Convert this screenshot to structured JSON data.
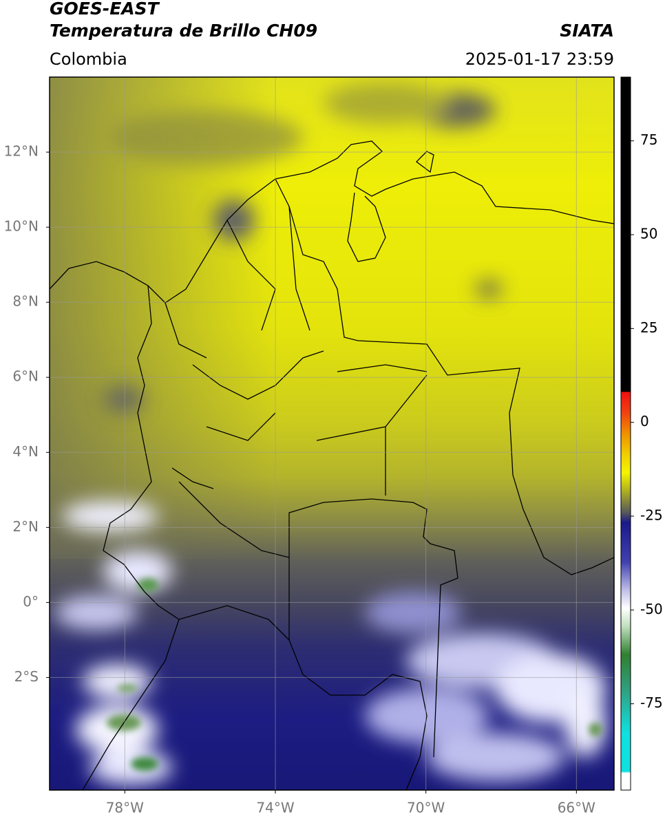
{
  "header": {
    "satellite": "GOES-EAST",
    "product": "Temperatura de Brillo CH09",
    "source": "SIATA",
    "region": "Colombia",
    "timestamp": "2025-01-17 23:59"
  },
  "map": {
    "lon_range": [
      -80,
      -65
    ],
    "lat_range": [
      -5,
      14
    ],
    "lon_ticks": [
      {
        "value": -78,
        "label": "78°W"
      },
      {
        "value": -74,
        "label": "74°W"
      },
      {
        "value": -70,
        "label": "70°W"
      },
      {
        "value": -66,
        "label": "66°W"
      }
    ],
    "lat_ticks": [
      {
        "value": 12,
        "label": "12°N"
      },
      {
        "value": 10,
        "label": "10°N"
      },
      {
        "value": 8,
        "label": "8°N"
      },
      {
        "value": 6,
        "label": "6°N"
      },
      {
        "value": 4,
        "label": "4°N"
      },
      {
        "value": 2,
        "label": "2°N"
      },
      {
        "value": 0,
        "label": "0°"
      },
      {
        "value": -2,
        "label": "2°S"
      }
    ]
  },
  "colorbar": {
    "range": [
      -98,
      92
    ],
    "ticks": [
      75,
      50,
      25,
      0,
      -25,
      -50,
      -75
    ]
  }
}
